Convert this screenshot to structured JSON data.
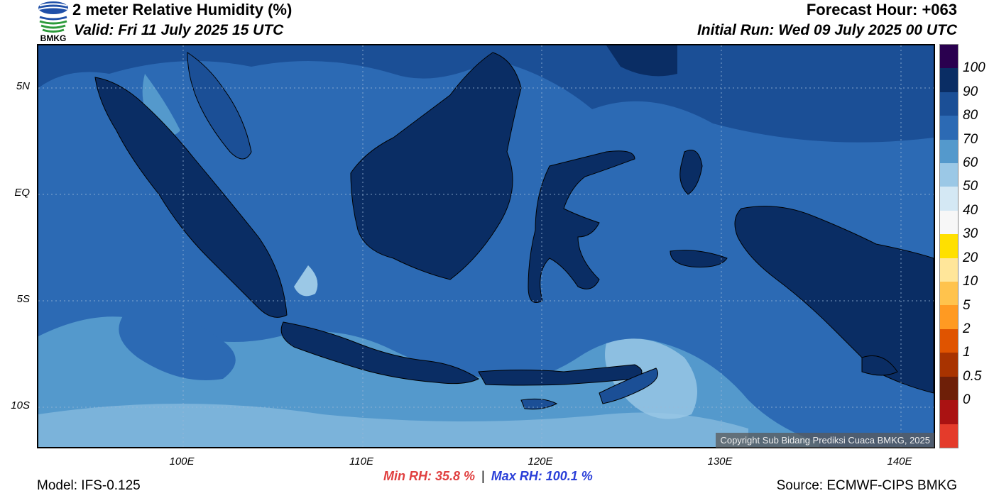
{
  "header": {
    "title": "2 meter Relative Humidity (%)",
    "valid": "Valid: Fri 11 July 2025 15 UTC",
    "forecast_hour": "Forecast Hour: +063",
    "initial_run": "Initial Run: Wed 09 July 2025 00 UTC",
    "logo_text": "BMKG"
  },
  "map": {
    "lat_labels": [
      "5N",
      "EQ",
      "5S",
      "10S"
    ],
    "lon_labels": [
      "100E",
      "110E",
      "120E",
      "130E",
      "140E"
    ],
    "copyright": "Copyright Sub Bidang Prediksi Cuaca BMKG, 2025"
  },
  "colorbar": {
    "labels": [
      "100",
      "90",
      "80",
      "70",
      "60",
      "50",
      "40",
      "30",
      "20",
      "10",
      "5",
      "2",
      "1",
      "0.5",
      "0"
    ],
    "colors": [
      "#2a004f",
      "#0a2d64",
      "#1b4f96",
      "#2c6ab4",
      "#5499cc",
      "#9bc8e6",
      "#d4e8f4",
      "#f7f7f7",
      "#ffe000",
      "#ffe69a",
      "#ffc34d",
      "#ff9a22",
      "#e05400",
      "#a83300",
      "#6e1f08",
      "#aa1212",
      "#e43b2b"
    ]
  },
  "stats": {
    "min_rh": "Min RH:  35.8 %",
    "separator": "|",
    "max_rh": "Max RH: 100.1 %"
  },
  "footer": {
    "model": "Model: IFS-0.125",
    "source": "Source: ECMWF-CIPS BMKG"
  }
}
